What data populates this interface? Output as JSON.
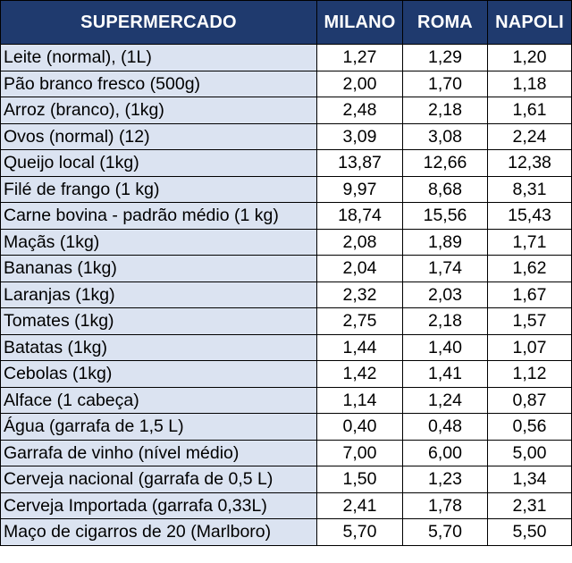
{
  "colors": {
    "header_bg": "#1f3a6e",
    "header_text": "#ffffff",
    "item_bg": "#dbe3f1",
    "value_bg": "#ffffff",
    "border": "#000000"
  },
  "table": {
    "headers": [
      "SUPERMERCADO",
      "MILANO",
      "ROMA",
      "NAPOLI"
    ],
    "rows": [
      [
        "Leite (normal), (1L)",
        "1,27",
        "1,29",
        "1,20"
      ],
      [
        "Pão branco fresco (500g)",
        "2,00",
        "1,70",
        "1,18"
      ],
      [
        "Arroz (branco), (1kg)",
        "2,48",
        "2,18",
        "1,61"
      ],
      [
        "Ovos (normal) (12)",
        "3,09",
        "3,08",
        "2,24"
      ],
      [
        "Queijo local (1kg)",
        "13,87",
        "12,66",
        "12,38"
      ],
      [
        "Filé de frango (1 kg)",
        "9,97",
        "8,68",
        "8,31"
      ],
      [
        "Carne bovina - padrão médio (1 kg)",
        "18,74",
        "15,56",
        "15,43"
      ],
      [
        "Maçãs (1kg)",
        "2,08",
        "1,89",
        "1,71"
      ],
      [
        "Bananas (1kg)",
        "2,04",
        "1,74",
        "1,62"
      ],
      [
        "Laranjas (1kg)",
        "2,32",
        "2,03",
        "1,67"
      ],
      [
        "Tomates (1kg)",
        "2,75",
        "2,18",
        "1,57"
      ],
      [
        "Batatas (1kg)",
        "1,44",
        "1,40",
        "1,07"
      ],
      [
        "Cebolas (1kg)",
        "1,42",
        "1,41",
        "1,12"
      ],
      [
        "Alface (1 cabeça)",
        "1,14",
        "1,24",
        "0,87"
      ],
      [
        "Água (garrafa de 1,5 L)",
        "0,40",
        "0,48",
        "0,56"
      ],
      [
        "Garrafa de vinho (nível médio)",
        "7,00",
        "6,00",
        "5,00"
      ],
      [
        "Cerveja nacional (garrafa de 0,5 L)",
        "1,50",
        "1,23",
        "1,34"
      ],
      [
        "Cerveja Importada (garrafa 0,33L)",
        "2,41",
        "1,78",
        "2,31"
      ],
      [
        "Maço de cigarros de 20 (Marlboro)",
        "5,70",
        "5,70",
        "5,50"
      ]
    ]
  }
}
